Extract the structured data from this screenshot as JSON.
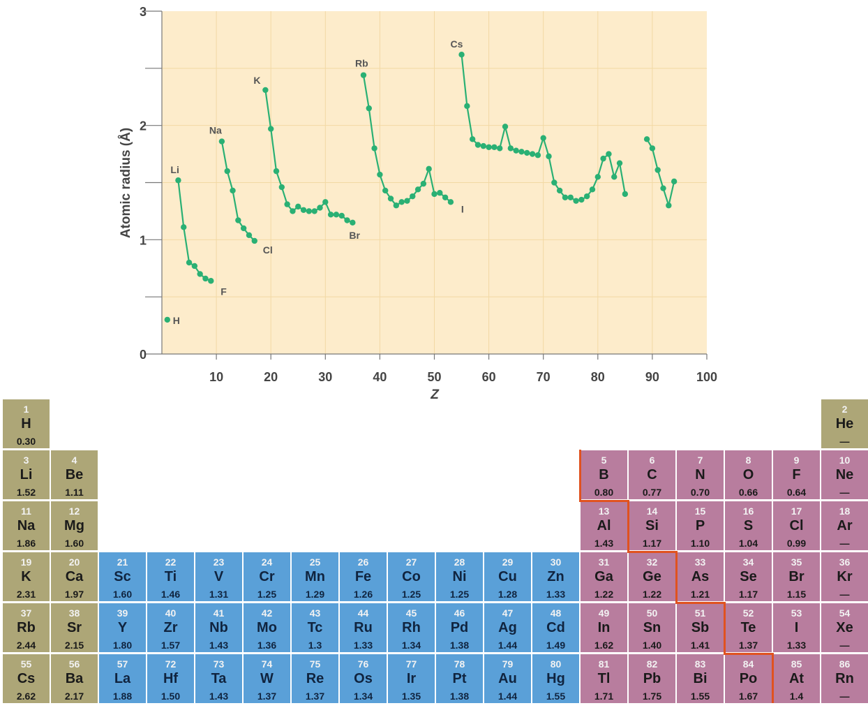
{
  "chart_data": {
    "type": "line",
    "xlabel": "Z",
    "ylabel": "Atomic radius (Å)",
    "xlim": [
      0,
      100
    ],
    "ylim": [
      0,
      3
    ],
    "x_ticks": [
      10,
      20,
      30,
      40,
      50,
      60,
      70,
      80,
      90,
      100
    ],
    "y_ticks": [
      0,
      1,
      2,
      3
    ],
    "grid": true,
    "background_color": "#fdeccb",
    "line_color": "#2ab074",
    "series": [
      {
        "x": [
          1
        ],
        "y": [
          0.3
        ]
      },
      {
        "x": [
          3,
          4,
          5,
          6,
          7,
          8,
          9
        ],
        "y": [
          1.52,
          1.11,
          0.8,
          0.77,
          0.7,
          0.66,
          0.64
        ]
      },
      {
        "x": [
          11,
          12,
          13,
          14,
          15,
          16,
          17
        ],
        "y": [
          1.86,
          1.6,
          1.43,
          1.17,
          1.1,
          1.04,
          0.99
        ]
      },
      {
        "x": [
          19,
          20,
          21,
          22,
          23,
          24,
          25,
          26,
          27,
          28,
          29,
          30,
          31,
          32,
          33,
          34,
          35
        ],
        "y": [
          2.31,
          1.97,
          1.6,
          1.46,
          1.31,
          1.25,
          1.29,
          1.26,
          1.25,
          1.25,
          1.28,
          1.33,
          1.22,
          1.22,
          1.21,
          1.17,
          1.15
        ]
      },
      {
        "x": [
          37,
          38,
          39,
          40,
          41,
          42,
          43,
          44,
          45,
          46,
          47,
          48,
          49,
          50,
          51,
          52,
          53
        ],
        "y": [
          2.44,
          2.15,
          1.8,
          1.57,
          1.43,
          1.36,
          1.3,
          1.33,
          1.34,
          1.38,
          1.44,
          1.49,
          1.62,
          1.4,
          1.41,
          1.37,
          1.33
        ]
      },
      {
        "x": [
          55,
          56,
          57,
          58,
          59,
          60,
          61,
          62,
          63,
          64,
          65,
          66,
          67,
          68,
          69,
          70,
          71,
          72,
          73,
          74,
          75,
          76,
          77,
          78,
          79,
          80,
          81,
          82,
          83,
          84,
          85
        ],
        "y": [
          2.62,
          2.17,
          1.88,
          1.83,
          1.82,
          1.81,
          1.81,
          1.8,
          1.99,
          1.8,
          1.78,
          1.77,
          1.76,
          1.75,
          1.74,
          1.89,
          1.73,
          1.5,
          1.43,
          1.37,
          1.37,
          1.34,
          1.35,
          1.38,
          1.44,
          1.55,
          1.71,
          1.75,
          1.55,
          1.67,
          1.4
        ]
      },
      {
        "x": [
          89,
          90,
          91,
          92,
          93,
          94
        ],
        "y": [
          1.88,
          1.8,
          1.61,
          1.45,
          1.3,
          1.51
        ]
      }
    ],
    "annotations": [
      {
        "text": "H",
        "x": 1,
        "y": 0.3
      },
      {
        "text": "Li",
        "x": 3,
        "y": 1.52
      },
      {
        "text": "F",
        "x": 9,
        "y": 0.64
      },
      {
        "text": "Na",
        "x": 11,
        "y": 1.86
      },
      {
        "text": "Cl",
        "x": 17,
        "y": 0.99
      },
      {
        "text": "K",
        "x": 19,
        "y": 2.31
      },
      {
        "text": "Br",
        "x": 35,
        "y": 1.15
      },
      {
        "text": "Rb",
        "x": 37,
        "y": 2.44
      },
      {
        "text": "I",
        "x": 53,
        "y": 1.33
      },
      {
        "text": "Cs",
        "x": 55,
        "y": 2.62
      }
    ]
  },
  "periodic_table": {
    "colors": {
      "s_block": "#ada677",
      "transition": "#5aa0d8",
      "p_block": "#b87d9e",
      "stair_line": "#e0521f"
    },
    "elements": [
      {
        "num": "1",
        "sym": "H",
        "rad": "0.30",
        "row": 1,
        "col": 1,
        "block": "s"
      },
      {
        "num": "2",
        "sym": "He",
        "rad": "—",
        "row": 1,
        "col": 18,
        "block": "s"
      },
      {
        "num": "3",
        "sym": "Li",
        "rad": "1.52",
        "row": 2,
        "col": 1,
        "block": "s"
      },
      {
        "num": "4",
        "sym": "Be",
        "rad": "1.11",
        "row": 2,
        "col": 2,
        "block": "s"
      },
      {
        "num": "5",
        "sym": "B",
        "rad": "0.80",
        "row": 2,
        "col": 13,
        "block": "p"
      },
      {
        "num": "6",
        "sym": "C",
        "rad": "0.77",
        "row": 2,
        "col": 14,
        "block": "p"
      },
      {
        "num": "7",
        "sym": "N",
        "rad": "0.70",
        "row": 2,
        "col": 15,
        "block": "p"
      },
      {
        "num": "8",
        "sym": "O",
        "rad": "0.66",
        "row": 2,
        "col": 16,
        "block": "p"
      },
      {
        "num": "9",
        "sym": "F",
        "rad": "0.64",
        "row": 2,
        "col": 17,
        "block": "p"
      },
      {
        "num": "10",
        "sym": "Ne",
        "rad": "—",
        "row": 2,
        "col": 18,
        "block": "p"
      },
      {
        "num": "11",
        "sym": "Na",
        "rad": "1.86",
        "row": 3,
        "col": 1,
        "block": "s"
      },
      {
        "num": "12",
        "sym": "Mg",
        "rad": "1.60",
        "row": 3,
        "col": 2,
        "block": "s"
      },
      {
        "num": "13",
        "sym": "Al",
        "rad": "1.43",
        "row": 3,
        "col": 13,
        "block": "p"
      },
      {
        "num": "14",
        "sym": "Si",
        "rad": "1.17",
        "row": 3,
        "col": 14,
        "block": "p"
      },
      {
        "num": "15",
        "sym": "P",
        "rad": "1.10",
        "row": 3,
        "col": 15,
        "block": "p"
      },
      {
        "num": "16",
        "sym": "S",
        "rad": "1.04",
        "row": 3,
        "col": 16,
        "block": "p"
      },
      {
        "num": "17",
        "sym": "Cl",
        "rad": "0.99",
        "row": 3,
        "col": 17,
        "block": "p"
      },
      {
        "num": "18",
        "sym": "Ar",
        "rad": "—",
        "row": 3,
        "col": 18,
        "block": "p"
      },
      {
        "num": "19",
        "sym": "K",
        "rad": "2.31",
        "row": 4,
        "col": 1,
        "block": "s"
      },
      {
        "num": "20",
        "sym": "Ca",
        "rad": "1.97",
        "row": 4,
        "col": 2,
        "block": "s"
      },
      {
        "num": "21",
        "sym": "Sc",
        "rad": "1.60",
        "row": 4,
        "col": 3,
        "block": "tm"
      },
      {
        "num": "22",
        "sym": "Ti",
        "rad": "1.46",
        "row": 4,
        "col": 4,
        "block": "tm"
      },
      {
        "num": "23",
        "sym": "V",
        "rad": "1.31",
        "row": 4,
        "col": 5,
        "block": "tm"
      },
      {
        "num": "24",
        "sym": "Cr",
        "rad": "1.25",
        "row": 4,
        "col": 6,
        "block": "tm"
      },
      {
        "num": "25",
        "sym": "Mn",
        "rad": "1.29",
        "row": 4,
        "col": 7,
        "block": "tm"
      },
      {
        "num": "26",
        "sym": "Fe",
        "rad": "1.26",
        "row": 4,
        "col": 8,
        "block": "tm"
      },
      {
        "num": "27",
        "sym": "Co",
        "rad": "1.25",
        "row": 4,
        "col": 9,
        "block": "tm"
      },
      {
        "num": "28",
        "sym": "Ni",
        "rad": "1.25",
        "row": 4,
        "col": 10,
        "block": "tm"
      },
      {
        "num": "29",
        "sym": "Cu",
        "rad": "1.28",
        "row": 4,
        "col": 11,
        "block": "tm"
      },
      {
        "num": "30",
        "sym": "Zn",
        "rad": "1.33",
        "row": 4,
        "col": 12,
        "block": "tm"
      },
      {
        "num": "31",
        "sym": "Ga",
        "rad": "1.22",
        "row": 4,
        "col": 13,
        "block": "p"
      },
      {
        "num": "32",
        "sym": "Ge",
        "rad": "1.22",
        "row": 4,
        "col": 14,
        "block": "p"
      },
      {
        "num": "33",
        "sym": "As",
        "rad": "1.21",
        "row": 4,
        "col": 15,
        "block": "p"
      },
      {
        "num": "34",
        "sym": "Se",
        "rad": "1.17",
        "row": 4,
        "col": 16,
        "block": "p"
      },
      {
        "num": "35",
        "sym": "Br",
        "rad": "1.15",
        "row": 4,
        "col": 17,
        "block": "p"
      },
      {
        "num": "36",
        "sym": "Kr",
        "rad": "—",
        "row": 4,
        "col": 18,
        "block": "p"
      },
      {
        "num": "37",
        "sym": "Rb",
        "rad": "2.44",
        "row": 5,
        "col": 1,
        "block": "s"
      },
      {
        "num": "38",
        "sym": "Sr",
        "rad": "2.15",
        "row": 5,
        "col": 2,
        "block": "s"
      },
      {
        "num": "39",
        "sym": "Y",
        "rad": "1.80",
        "row": 5,
        "col": 3,
        "block": "tm"
      },
      {
        "num": "40",
        "sym": "Zr",
        "rad": "1.57",
        "row": 5,
        "col": 4,
        "block": "tm"
      },
      {
        "num": "41",
        "sym": "Nb",
        "rad": "1.43",
        "row": 5,
        "col": 5,
        "block": "tm"
      },
      {
        "num": "42",
        "sym": "Mo",
        "rad": "1.36",
        "row": 5,
        "col": 6,
        "block": "tm"
      },
      {
        "num": "43",
        "sym": "Tc",
        "rad": "1.3",
        "row": 5,
        "col": 7,
        "block": "tm"
      },
      {
        "num": "44",
        "sym": "Ru",
        "rad": "1.33",
        "row": 5,
        "col": 8,
        "block": "tm"
      },
      {
        "num": "45",
        "sym": "Rh",
        "rad": "1.34",
        "row": 5,
        "col": 9,
        "block": "tm"
      },
      {
        "num": "46",
        "sym": "Pd",
        "rad": "1.38",
        "row": 5,
        "col": 10,
        "block": "tm"
      },
      {
        "num": "47",
        "sym": "Ag",
        "rad": "1.44",
        "row": 5,
        "col": 11,
        "block": "tm"
      },
      {
        "num": "48",
        "sym": "Cd",
        "rad": "1.49",
        "row": 5,
        "col": 12,
        "block": "tm"
      },
      {
        "num": "49",
        "sym": "In",
        "rad": "1.62",
        "row": 5,
        "col": 13,
        "block": "p"
      },
      {
        "num": "50",
        "sym": "Sn",
        "rad": "1.40",
        "row": 5,
        "col": 14,
        "block": "p"
      },
      {
        "num": "51",
        "sym": "Sb",
        "rad": "1.41",
        "row": 5,
        "col": 15,
        "block": "p"
      },
      {
        "num": "52",
        "sym": "Te",
        "rad": "1.37",
        "row": 5,
        "col": 16,
        "block": "p"
      },
      {
        "num": "53",
        "sym": "I",
        "rad": "1.33",
        "row": 5,
        "col": 17,
        "block": "p"
      },
      {
        "num": "54",
        "sym": "Xe",
        "rad": "—",
        "row": 5,
        "col": 18,
        "block": "p"
      },
      {
        "num": "55",
        "sym": "Cs",
        "rad": "2.62",
        "row": 6,
        "col": 1,
        "block": "s"
      },
      {
        "num": "56",
        "sym": "Ba",
        "rad": "2.17",
        "row": 6,
        "col": 2,
        "block": "s"
      },
      {
        "num": "57",
        "sym": "La",
        "rad": "1.88",
        "row": 6,
        "col": 3,
        "block": "tm"
      },
      {
        "num": "72",
        "sym": "Hf",
        "rad": "1.50",
        "row": 6,
        "col": 4,
        "block": "tm"
      },
      {
        "num": "73",
        "sym": "Ta",
        "rad": "1.43",
        "row": 6,
        "col": 5,
        "block": "tm"
      },
      {
        "num": "74",
        "sym": "W",
        "rad": "1.37",
        "row": 6,
        "col": 6,
        "block": "tm"
      },
      {
        "num": "75",
        "sym": "Re",
        "rad": "1.37",
        "row": 6,
        "col": 7,
        "block": "tm"
      },
      {
        "num": "76",
        "sym": "Os",
        "rad": "1.34",
        "row": 6,
        "col": 8,
        "block": "tm"
      },
      {
        "num": "77",
        "sym": "Ir",
        "rad": "1.35",
        "row": 6,
        "col": 9,
        "block": "tm"
      },
      {
        "num": "78",
        "sym": "Pt",
        "rad": "1.38",
        "row": 6,
        "col": 10,
        "block": "tm"
      },
      {
        "num": "79",
        "sym": "Au",
        "rad": "1.44",
        "row": 6,
        "col": 11,
        "block": "tm"
      },
      {
        "num": "80",
        "sym": "Hg",
        "rad": "1.55",
        "row": 6,
        "col": 12,
        "block": "tm"
      },
      {
        "num": "81",
        "sym": "Tl",
        "rad": "1.71",
        "row": 6,
        "col": 13,
        "block": "p"
      },
      {
        "num": "82",
        "sym": "Pb",
        "rad": "1.75",
        "row": 6,
        "col": 14,
        "block": "p"
      },
      {
        "num": "83",
        "sym": "Bi",
        "rad": "1.55",
        "row": 6,
        "col": 15,
        "block": "p"
      },
      {
        "num": "84",
        "sym": "Po",
        "rad": "1.67",
        "row": 6,
        "col": 16,
        "block": "p"
      },
      {
        "num": "85",
        "sym": "At",
        "rad": "1.4",
        "row": 6,
        "col": 17,
        "block": "p"
      },
      {
        "num": "86",
        "sym": "Rn",
        "rad": "—",
        "row": 6,
        "col": 18,
        "block": "p"
      }
    ]
  }
}
